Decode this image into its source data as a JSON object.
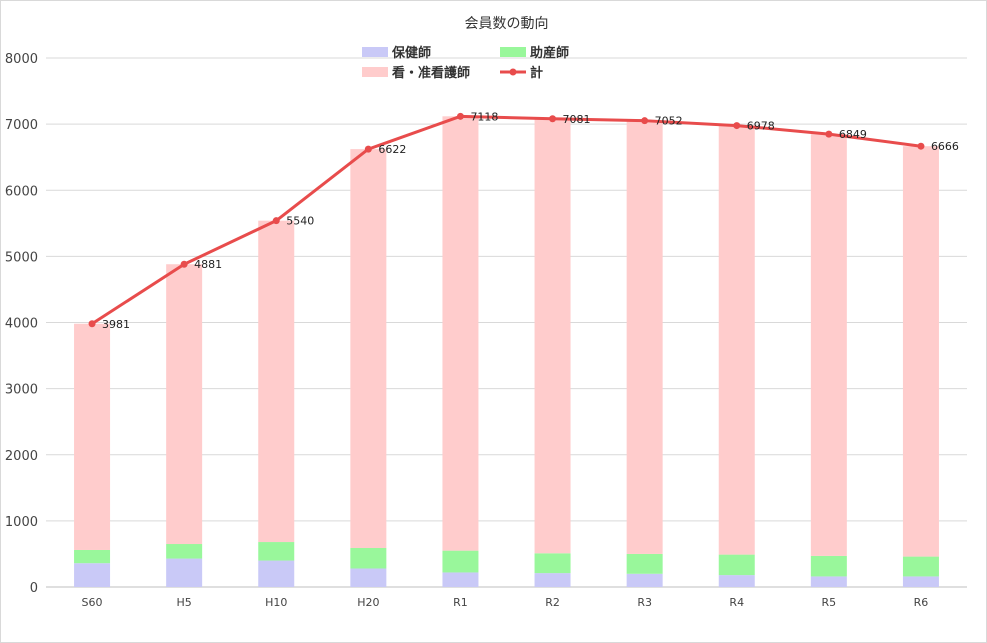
{
  "chart_data": {
    "type": "bar",
    "stacked": true,
    "title": "会員数の動向",
    "categories": [
      "S60",
      "H5",
      "H10",
      "H20",
      "R1",
      "R2",
      "R3",
      "R4",
      "R5",
      "R6"
    ],
    "series": [
      {
        "name": "保健師",
        "type": "bar",
        "color": "#c9c9f7",
        "values": [
          360,
          430,
          400,
          280,
          220,
          210,
          200,
          180,
          160,
          160
        ]
      },
      {
        "name": "助産師",
        "type": "bar",
        "color": "#99f79b",
        "values": [
          200,
          220,
          280,
          310,
          330,
          300,
          300,
          310,
          310,
          300
        ]
      },
      {
        "name": "看・准看護師",
        "type": "bar",
        "color": "#ffcccc",
        "values": [
          3421,
          4231,
          4860,
          6032,
          6568,
          6571,
          6552,
          6488,
          6379,
          6206
        ]
      },
      {
        "name": "計",
        "type": "line",
        "color": "#e84c4c",
        "values": [
          3981,
          4881,
          5540,
          6622,
          7118,
          7081,
          7052,
          6978,
          6849,
          6666
        ]
      }
    ],
    "data_labels": [
      "3981",
      "4881",
      "5540",
      "6622",
      "7118",
      "7081",
      "7052",
      "6978",
      "6849",
      "6666"
    ],
    "yticks": [
      "0",
      "1000",
      "2000",
      "3000",
      "4000",
      "5000",
      "6000",
      "7000",
      "8000"
    ],
    "ylim": [
      0,
      8000
    ],
    "grid": true,
    "legend_position": "top-center"
  }
}
